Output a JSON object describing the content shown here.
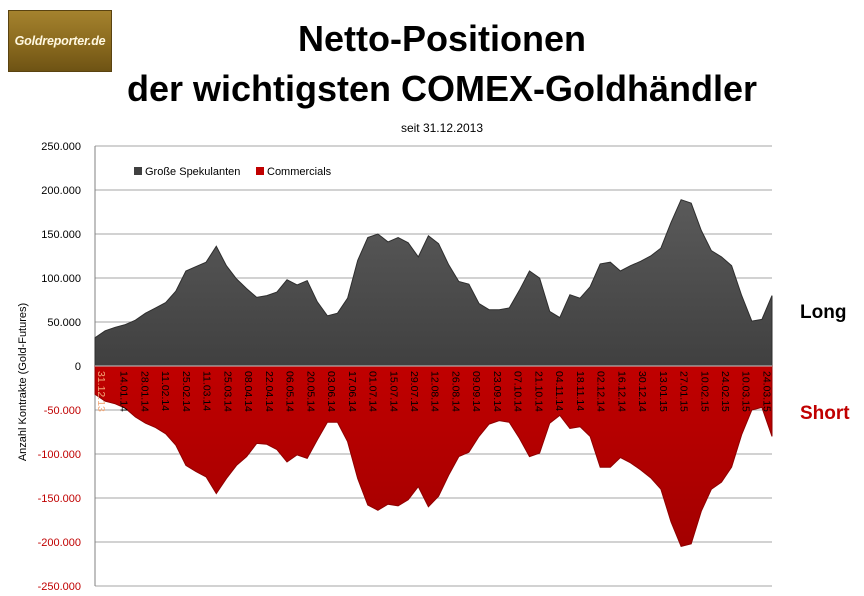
{
  "logo": {
    "text": "Goldreporter.de"
  },
  "header": {
    "title_line1": "Netto-Positionen",
    "title_line2": "der wichtigsten COMEX-Goldhändler",
    "subtitle": "seit 31.12.2013"
  },
  "side_labels": {
    "long": "Long",
    "short": "Short"
  },
  "colors": {
    "speculators": "#404040",
    "commercials": "#c00000",
    "negative_tick": "#c00000",
    "x_tick_above": "#000000",
    "x_tick_in_red": "#f2a878"
  },
  "chart_data": {
    "type": "area",
    "ylabel": "Anzahl Kontrakte  (Gold-Futures)",
    "xlabel": "",
    "ylim": [
      -250000,
      250000
    ],
    "ytick_values": [
      250000,
      200000,
      150000,
      100000,
      50000,
      0,
      -50000,
      -100000,
      -150000,
      -200000,
      -250000
    ],
    "ytick_labels": [
      "250.000",
      "200.000",
      "150.000",
      "100.000",
      "50.000",
      "0",
      "-50.000",
      "-100.000",
      "-150.000",
      "-200.000",
      "-250.000"
    ],
    "legend_position": "top-left",
    "grid": "horizontal",
    "x_tick_labels": [
      "31.12.13",
      "14.01.14",
      "28.01.14",
      "11.02.14",
      "25.02.14",
      "11.03.14",
      "25.03.14",
      "08.04.14",
      "22.04.14",
      "06.05.14",
      "20.05.14",
      "03.06.14",
      "17.06.14",
      "01.07.14",
      "15.07.14",
      "29.07.14",
      "12.08.14",
      "26.08.14",
      "09.09.14",
      "23.09.14",
      "07.10.14",
      "21.10.14",
      "04.11.14",
      "18.11.14",
      "02.12.14",
      "16.12.14",
      "30.12.14",
      "13.01.15",
      "27.01.15",
      "10.02.15",
      "24.02.15",
      "10.03.15",
      "24.03.15"
    ],
    "series": [
      {
        "name": "Große Spekulanten",
        "values": [
          32000,
          40000,
          44000,
          47000,
          52000,
          60000,
          66000,
          72000,
          85000,
          108000,
          113000,
          118000,
          136000,
          114000,
          99000,
          88000,
          78000,
          80000,
          84000,
          98000,
          92000,
          97000,
          73000,
          57000,
          60000,
          77000,
          120000,
          146000,
          150000,
          141000,
          146000,
          140000,
          124000,
          148000,
          139000,
          115000,
          96000,
          93000,
          71000,
          64000,
          64000,
          66000,
          86000,
          108000,
          100000,
          62000,
          55000,
          81000,
          77000,
          90000,
          116000,
          118000,
          108000,
          114000,
          119000,
          125000,
          134000,
          163000,
          189000,
          185000,
          154000,
          131000,
          124000,
          114000,
          80000,
          51000,
          53000,
          80000
        ]
      },
      {
        "name": "Commercials",
        "values": [
          -32000,
          -40000,
          -43000,
          -48000,
          -58000,
          -65000,
          -70000,
          -77000,
          -90000,
          -113000,
          -120000,
          -126000,
          -145000,
          -128000,
          -113000,
          -103000,
          -88000,
          -89000,
          -95000,
          -109000,
          -101000,
          -105000,
          -84000,
          -64000,
          -64000,
          -86000,
          -128000,
          -158000,
          -164000,
          -157000,
          -159000,
          -152000,
          -137000,
          -160000,
          -148000,
          -124000,
          -103000,
          -98000,
          -80000,
          -66000,
          -62000,
          -64000,
          -82000,
          -103000,
          -99000,
          -65000,
          -56000,
          -71000,
          -69000,
          -80000,
          -115000,
          -115000,
          -104000,
          -110000,
          -118000,
          -127000,
          -140000,
          -177000,
          -205000,
          -202000,
          -165000,
          -140000,
          -132000,
          -115000,
          -78000,
          -50000,
          -47000,
          -80000
        ]
      }
    ]
  }
}
